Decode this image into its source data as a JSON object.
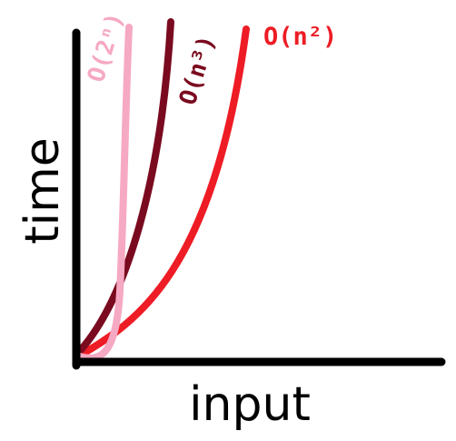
{
  "chart_data": {
    "type": "line",
    "xlabel": "input",
    "ylabel": "time",
    "axis_color": "#000000",
    "grid": false,
    "ticks": false,
    "series": [
      {
        "name": "O(n²)",
        "key": "n2",
        "color": "#ee1c25",
        "label_orientation": "horizontal"
      },
      {
        "name": "O(n³)",
        "key": "n3",
        "color": "#7a0a1f",
        "label_orientation": "rotated"
      },
      {
        "name": "O(2ⁿ)",
        "key": "exp2",
        "color": "#f6a9c2",
        "label_orientation": "rotated"
      }
    ]
  }
}
